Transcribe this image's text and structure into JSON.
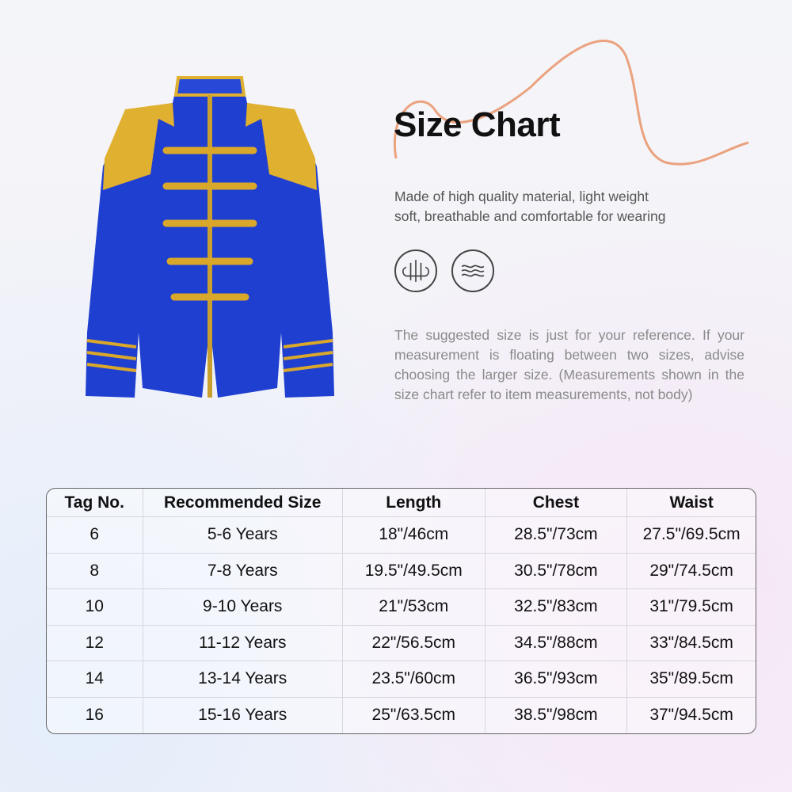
{
  "title": "Size Chart",
  "description": [
    "Made of high quality material, light weight",
    "soft, breathable and comfortable for wearing"
  ],
  "feature_icons": [
    "breathable-fabric-icon",
    "soft-wave-icon"
  ],
  "note": "The suggested size is just for your reference. If your measurement is floating between two sizes, advise choosing the larger size. (Measurements shown in the size chart refer to item measurements, not body)",
  "colors": {
    "jacket": "#1f3fd0",
    "trim": "#e0b030",
    "squiggle": "#eba27e"
  },
  "table": {
    "headers": [
      "Tag No.",
      "Recommended Size",
      "Length",
      "Chest",
      "Waist"
    ],
    "rows": [
      [
        "6",
        "5-6 Years",
        "18\"/46cm",
        "28.5\"/73cm",
        "27.5\"/69.5cm"
      ],
      [
        "8",
        "7-8 Years",
        "19.5\"/49.5cm",
        "30.5\"/78cm",
        "29\"/74.5cm"
      ],
      [
        "10",
        "9-10 Years",
        "21\"/53cm",
        "32.5\"/83cm",
        "31\"/79.5cm"
      ],
      [
        "12",
        "11-12 Years",
        "22\"/56.5cm",
        "34.5\"/88cm",
        "33\"/84.5cm"
      ],
      [
        "14",
        "13-14 Years",
        "23.5\"/60cm",
        "36.5\"/93cm",
        "35\"/89.5cm"
      ],
      [
        "16",
        "15-16 Years",
        "25\"/63.5cm",
        "38.5\"/98cm",
        "37\"/94.5cm"
      ]
    ]
  }
}
